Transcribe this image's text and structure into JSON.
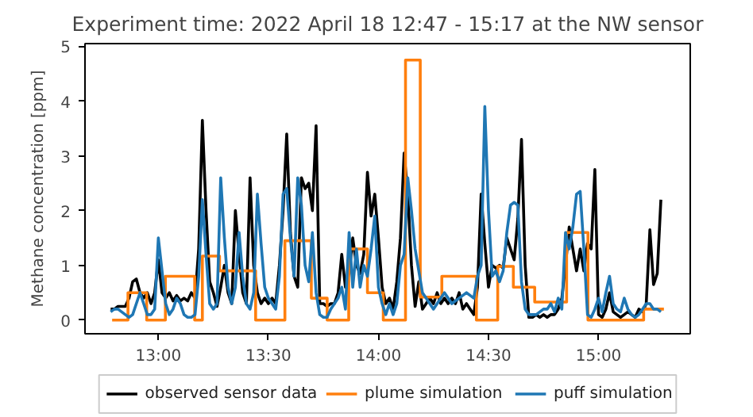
{
  "chart_data": {
    "type": "line",
    "title": "Experiment time: 2022 April 18 12:47 - 15:17 at the NW sensor",
    "ylabel": "Methane concentration [ppm]",
    "xlim": [
      12.6667,
      15.4167
    ],
    "xticks": [
      {
        "value": 13,
        "label": "13:00"
      },
      {
        "value": 13.5,
        "label": "13:30"
      },
      {
        "value": 14,
        "label": "14:00"
      },
      {
        "value": 14.5,
        "label": "14:30"
      },
      {
        "value": 15,
        "label": "15:00"
      }
    ],
    "ylim": [
      -0.25,
      5.05
    ],
    "yticks": [
      0,
      1,
      2,
      3,
      4,
      5
    ],
    "grid": false,
    "legend": "bottom",
    "x": [
      12.7833,
      12.8,
      12.8167,
      12.8333,
      12.85,
      12.8667,
      12.8833,
      12.9,
      12.9167,
      12.9333,
      12.95,
      12.9667,
      12.9833,
      13,
      13.0167,
      13.0333,
      13.05,
      13.0667,
      13.0833,
      13.1,
      13.1167,
      13.1333,
      13.15,
      13.1667,
      13.1833,
      13.2,
      13.2167,
      13.2333,
      13.25,
      13.2667,
      13.2833,
      13.3,
      13.3167,
      13.3333,
      13.35,
      13.3667,
      13.3833,
      13.4,
      13.4167,
      13.4333,
      13.45,
      13.4667,
      13.4833,
      13.5,
      13.5167,
      13.5333,
      13.55,
      13.5667,
      13.5833,
      13.6,
      13.6167,
      13.6333,
      13.65,
      13.6667,
      13.6833,
      13.7,
      13.7167,
      13.7333,
      13.75,
      13.7667,
      13.7833,
      13.8,
      13.8167,
      13.8333,
      13.85,
      13.8667,
      13.8833,
      13.9,
      13.9167,
      13.9333,
      13.95,
      13.9667,
      13.9833,
      14,
      14.0167,
      14.0333,
      14.05,
      14.0667,
      14.0833,
      14.1,
      14.1167,
      14.1333,
      14.15,
      14.1667,
      14.1833,
      14.2,
      14.2167,
      14.2333,
      14.25,
      14.2667,
      14.2833,
      14.3,
      14.3167,
      14.3333,
      14.35,
      14.3667,
      14.3833,
      14.4,
      14.4167,
      14.4333,
      14.45,
      14.4667,
      14.4833,
      14.5,
      14.5167,
      14.5333,
      14.55,
      14.5667,
      14.5833,
      14.6,
      14.6167,
      14.6333,
      14.65,
      14.6667,
      14.6833,
      14.7,
      14.7167,
      14.7333,
      14.75,
      14.7667,
      14.7833,
      14.8,
      14.8167,
      14.8333,
      14.85,
      14.8667,
      14.8833,
      14.9,
      14.9167,
      14.9333,
      14.95,
      14.9667,
      14.9833,
      15,
      15.0167,
      15.0333,
      15.05,
      15.0667,
      15.0833,
      15.1,
      15.1167,
      15.1333,
      15.15,
      15.1667,
      15.1833,
      15.2,
      15.2167,
      15.2333,
      15.25,
      15.2667,
      15.2833
    ],
    "series": [
      {
        "name": "observed sensor data",
        "color": "#000000",
        "values": [
          0.2,
          0.2,
          0.25,
          0.25,
          0.25,
          0.4,
          0.7,
          0.75,
          0.5,
          0.4,
          0.5,
          0.3,
          0.5,
          1.1,
          0.5,
          0.4,
          0.5,
          0.35,
          0.45,
          0.35,
          0.4,
          0.35,
          0.5,
          0.4,
          1.3,
          3.65,
          2.0,
          0.7,
          0.5,
          0.25,
          0.6,
          1.0,
          0.5,
          0.3,
          2.0,
          1.2,
          0.5,
          0.3,
          2.6,
          1.0,
          0.5,
          0.3,
          0.4,
          0.3,
          0.4,
          0.3,
          1.0,
          2.0,
          3.4,
          1.6,
          0.8,
          0.6,
          2.6,
          2.4,
          2.5,
          2.0,
          3.55,
          0.3,
          0.3,
          0.25,
          0.3,
          0.3,
          0.5,
          1.2,
          0.6,
          0.85,
          1.5,
          1.0,
          0.85,
          1.2,
          2.7,
          1.9,
          2.3,
          1.5,
          0.6,
          0.3,
          0.4,
          0.2,
          0.7,
          1.5,
          3.05,
          2.3,
          1.0,
          0.25,
          0.7,
          0.2,
          0.3,
          0.4,
          0.3,
          0.5,
          0.3,
          0.4,
          0.3,
          0.4,
          0.3,
          0.5,
          0.2,
          0.3,
          0.2,
          0.1,
          0.6,
          2.3,
          1.4,
          0.6,
          1.0,
          0.95,
          1.0,
          0.95,
          1.5,
          1.3,
          1.1,
          1.85,
          3.3,
          1.0,
          0.05,
          0.05,
          0.1,
          0.05,
          0.1,
          0.05,
          0.1,
          0.1,
          0.2,
          0.4,
          1.0,
          1.7,
          1.3,
          0.9,
          1.3,
          0.9,
          1.4,
          1.3,
          2.75,
          0.1,
          0.05,
          0.2,
          0.5,
          0.15,
          0.1,
          0.05,
          0.1,
          0.15,
          0.1,
          0.05,
          0.2,
          0.15,
          0.3,
          1.65,
          0.65,
          0.85,
          2.2
        ]
      },
      {
        "name": "plume simulation",
        "color": "#ff7f0e",
        "type": "step",
        "x": [
          12.79,
          12.862,
          12.947,
          13.032,
          13.165,
          13.2,
          13.278,
          13.442,
          13.575,
          13.695,
          13.767,
          13.865,
          13.95,
          14.022,
          14.123,
          14.19,
          14.288,
          14.445,
          14.542,
          14.613,
          14.71,
          14.855,
          14.952,
          15.205,
          15.297
        ],
        "values": [
          0,
          0.5,
          0,
          0.8,
          0,
          1.17,
          0.9,
          0,
          1.45,
          0.4,
          0,
          1.3,
          0.5,
          0,
          4.75,
          0.42,
          0.8,
          0,
          0.98,
          0.6,
          0.33,
          1.6,
          0,
          0.2,
          0.2
        ]
      },
      {
        "name": "puff simulation",
        "color": "#1f77b4",
        "values": [
          0.15,
          0.2,
          0.2,
          0.15,
          0.1,
          0.05,
          0.1,
          0.3,
          0.5,
          0.3,
          0.1,
          0.1,
          0.2,
          1.5,
          0.9,
          0.3,
          0.1,
          0.2,
          0.4,
          0.3,
          0.1,
          0.05,
          0.05,
          0.1,
          0.8,
          2.2,
          1.2,
          0.3,
          0.2,
          0.3,
          2.6,
          1.5,
          0.6,
          0.3,
          0.6,
          1.6,
          0.8,
          0.3,
          0.2,
          0.5,
          2.3,
          1.4,
          0.6,
          0.4,
          0.3,
          0.2,
          0.8,
          2.3,
          2.4,
          1.5,
          0.8,
          2.6,
          2.1,
          1.0,
          0.7,
          1.6,
          0.5,
          0.1,
          0.05,
          0.05,
          0.2,
          0.3,
          0.4,
          0.6,
          0.2,
          1.6,
          0.6,
          1.3,
          0.6,
          1.0,
          0.8,
          1.3,
          1.9,
          0.6,
          0.3,
          0.1,
          0.3,
          0.1,
          0.3,
          1.0,
          1.2,
          2.6,
          2.0,
          1.3,
          0.9,
          0.5,
          0.4,
          0.3,
          0.2,
          0.3,
          0.4,
          0.5,
          0.4,
          0.3,
          0.35,
          0.4,
          0.45,
          0.5,
          0.45,
          0.4,
          0.8,
          1.0,
          3.9,
          2.0,
          0.8,
          0.9,
          0.7,
          0.9,
          1.6,
          2.1,
          2.15,
          2.1,
          0.7,
          0.2,
          0.1,
          0.1,
          0.1,
          0.15,
          0.2,
          0.2,
          0.3,
          0.15,
          0.4,
          0.2,
          1.6,
          1.3,
          1.7,
          2.3,
          2.35,
          1.3,
          0.1,
          0.05,
          0.2,
          0.4,
          0.15,
          0.5,
          0.8,
          0.3,
          0.2,
          0.15,
          0.4,
          0.2,
          0.1,
          0.05,
          0.1,
          0.2,
          0.3,
          0.3,
          0.2,
          0.2,
          0.15
        ]
      }
    ]
  }
}
